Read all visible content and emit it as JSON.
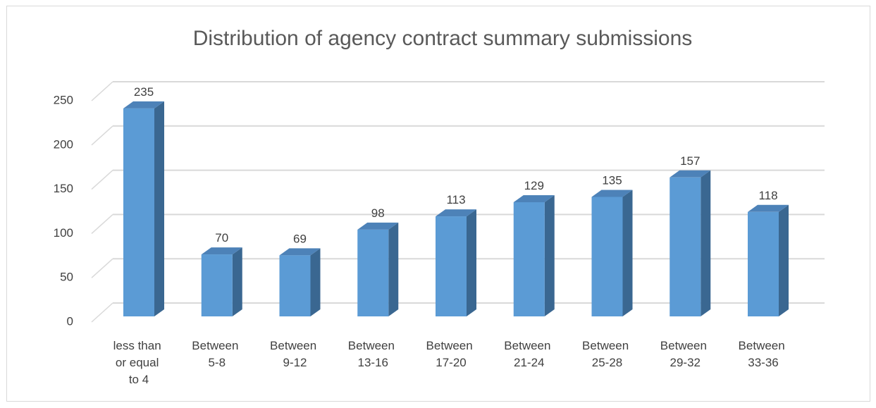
{
  "chart_data": {
    "type": "bar3d",
    "title": "Distribution of agency contract summary submissions",
    "categories": [
      "less than or equal to 4",
      "Between 5-8",
      "Between 9-12",
      "Between 13-16",
      "Between 17-20",
      "Between 21-24",
      "Between 25-28",
      "Between 29-32",
      "Between 33-36"
    ],
    "values": [
      235,
      70,
      69,
      98,
      113,
      129,
      135,
      157,
      118
    ],
    "color": "#5b9bd5",
    "ylim": [
      0,
      250
    ],
    "yticks": [
      0,
      50,
      100,
      150,
      200,
      250
    ],
    "grid": true,
    "data_labels": true
  }
}
